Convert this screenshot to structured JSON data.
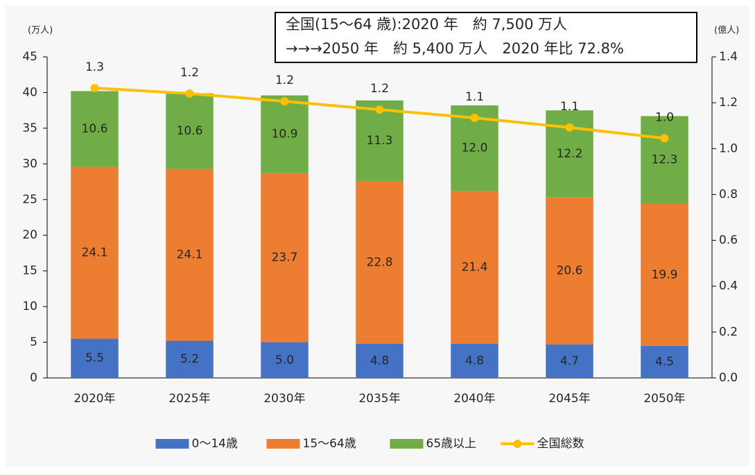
{
  "chart_data": {
    "type": "stacked_bar_line",
    "annotation": [
      "全国(15〜64 歳):2020 年　約 7,500 万人",
      "→→→2050 年　約 5,400 万人　2020 年比 72.8%"
    ],
    "y_unit": "(万人)",
    "y2_unit": "(億人)",
    "categories": [
      "2020年",
      "2025年",
      "2030年",
      "2035年",
      "2040年",
      "2045年",
      "2050年"
    ],
    "series": [
      {
        "name": "0〜14歳",
        "color": "#4472c4",
        "values": [
          5.5,
          5.2,
          5.0,
          4.8,
          4.8,
          4.7,
          4.5
        ],
        "value_labels": [
          "5.5",
          "5.2",
          "5.0",
          "4.8",
          "4.8",
          "4.7",
          "4.5"
        ]
      },
      {
        "name": "15〜64歳",
        "color": "#ed7d31",
        "values": [
          24.1,
          24.1,
          23.7,
          22.8,
          21.4,
          20.6,
          19.9
        ],
        "value_labels": [
          "24.1",
          "24.1",
          "23.7",
          "22.8",
          "21.4",
          "20.6",
          "19.9"
        ]
      },
      {
        "name": "65歳以上",
        "color": "#70ad47",
        "values": [
          10.6,
          10.6,
          10.9,
          11.3,
          12.0,
          12.2,
          12.3
        ],
        "value_labels": [
          "10.6",
          "10.6",
          "10.9",
          "11.3",
          "12.0",
          "12.2",
          "12.3"
        ]
      },
      {
        "name": "全国総数",
        "color": "#ffc000",
        "axis": "y2",
        "type": "line",
        "values": [
          1.264,
          1.24,
          1.206,
          1.17,
          1.134,
          1.092,
          1.045
        ],
        "value_labels": [
          "1.3",
          "1.2",
          "1.2",
          "1.2",
          "1.1",
          "1.1",
          "1.0"
        ]
      }
    ],
    "ylim": [
      0,
      45
    ],
    "yticks": [
      0,
      5,
      10,
      15,
      20,
      25,
      30,
      35,
      40,
      45
    ],
    "y2lim": [
      0,
      1.4
    ],
    "y2ticks": [
      {
        "value": 0,
        "label": "0.0"
      },
      0.2,
      0.4,
      0.6,
      0.8,
      {
        "value": 1,
        "label": "1.0"
      },
      1.2,
      1.4
    ],
    "legend": "bottom"
  }
}
